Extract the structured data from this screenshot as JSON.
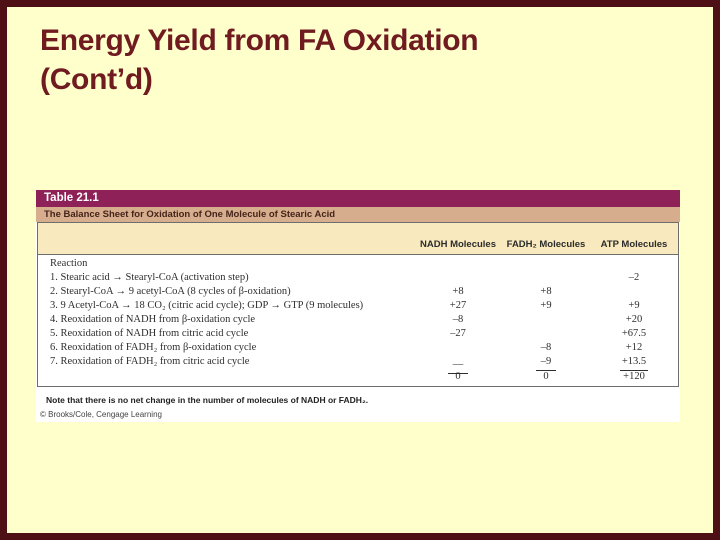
{
  "slide": {
    "title_line1": "Energy Yield from FA Oxidation",
    "title_line2": "(Cont’d)"
  },
  "colors": {
    "background": "#FFFFCC",
    "frame_border": "#4E1014",
    "title_text": "#6F1B1F",
    "table_label_bg": "#8E2157",
    "table_subtitle_bg": "#D6AE8E",
    "column_header_bg": "#F8E9BE"
  },
  "table": {
    "label": "Table 21.1",
    "subtitle": "The Balance Sheet for Oxidation of One Molecule of Stearic Acid",
    "reaction_header": "Reaction",
    "columns": [
      "NADH Molecules",
      "FADH₂ Molecules",
      "ATP Molecules"
    ],
    "rows": [
      {
        "reaction": "1. Stearic acid → Stearyl-CoA (activation step)",
        "nadh": "",
        "fadh2": "",
        "atp": "–2"
      },
      {
        "reaction": "2. Stearyl-CoA → 9 acetyl-CoA (8 cycles of β-oxidation)",
        "nadh": "+8",
        "fadh2": "+8",
        "atp": ""
      },
      {
        "reaction": "3. 9 Acetyl-CoA → 18 CO₂ (citric acid cycle); GDP → GTP (9 molecules)",
        "nadh": "+27",
        "fadh2": "+9",
        "atp": "+9"
      },
      {
        "reaction": "4. Reoxidation of NADH from β-oxidation cycle",
        "nadh": "–8",
        "fadh2": "",
        "atp": "+20"
      },
      {
        "reaction": "5. Reoxidation of NADH from citric acid cycle",
        "nadh": "–27",
        "fadh2": "",
        "atp": "+67.5"
      },
      {
        "reaction": "6. Reoxidation of FADH₂ from β-oxidation cycle",
        "nadh": "",
        "fadh2": "–8",
        "atp": "+12"
      },
      {
        "reaction": "7. Reoxidation of FADH₂ from citric acid cycle",
        "nadh": "—",
        "fadh2": "–9",
        "atp": "+13.5"
      }
    ],
    "totals": {
      "nadh": "0",
      "fadh2": "0",
      "atp": "+120"
    },
    "note": "Note that there is no net change in the number of molecules of NADH or FADH₂.",
    "copyright": "© Brooks/Cole, Cengage Learning"
  }
}
